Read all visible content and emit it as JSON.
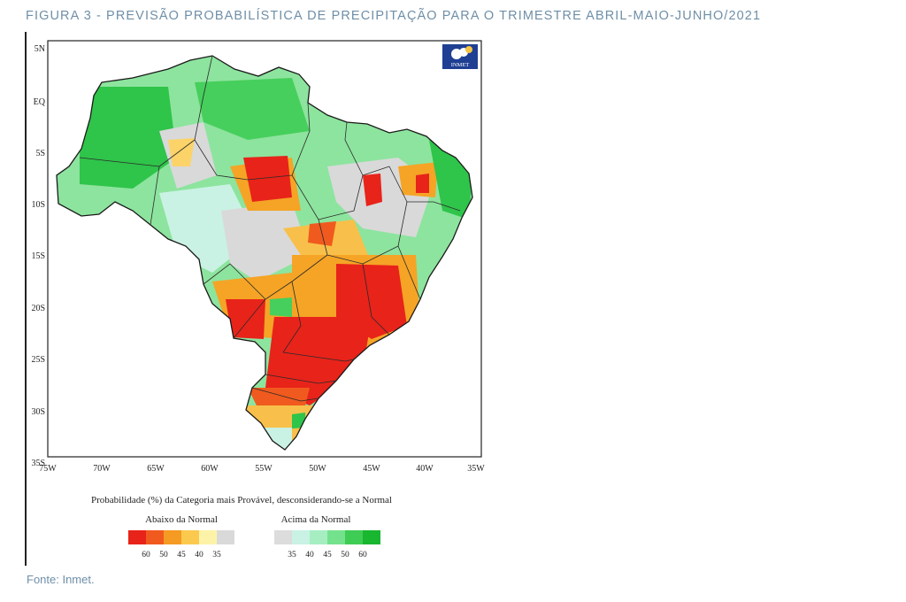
{
  "figure": {
    "title": "FIGURA 3 - PREVISÃO PROBABILÍSTICA DE PRECIPITAÇÃO PARA O TRIMESTRE ABRIL-MAIO-JUNHO/2021",
    "source": "Fonte: Inmet."
  },
  "map": {
    "logo_text": "INMET",
    "lat_labels": [
      "5N",
      "EQ",
      "5S",
      "10S",
      "15S",
      "20S",
      "25S",
      "30S",
      "35S"
    ],
    "lon_labels": [
      "75W",
      "70W",
      "65W",
      "60W",
      "55W",
      "50W",
      "45W",
      "40W",
      "35W"
    ],
    "caption": "Probabilidade (%) da Categoria mais Provável, desconsiderando-se a Normal",
    "legend": {
      "below": {
        "title": "Abaixo da Normal",
        "labels": [
          "60",
          "50",
          "45",
          "40",
          "35"
        ],
        "colors": [
          "#e8231a",
          "#f05a1e",
          "#f59a22",
          "#fbc94e",
          "#fdf3a8",
          "#d9d9d9"
        ]
      },
      "above": {
        "title": "Acima da Normal",
        "labels": [
          "35",
          "40",
          "45",
          "50",
          "60"
        ],
        "colors": [
          "#dcdcdc",
          "#c9f2e4",
          "#a6eec2",
          "#74e28d",
          "#3fcc55",
          "#19b62f"
        ]
      }
    }
  }
}
